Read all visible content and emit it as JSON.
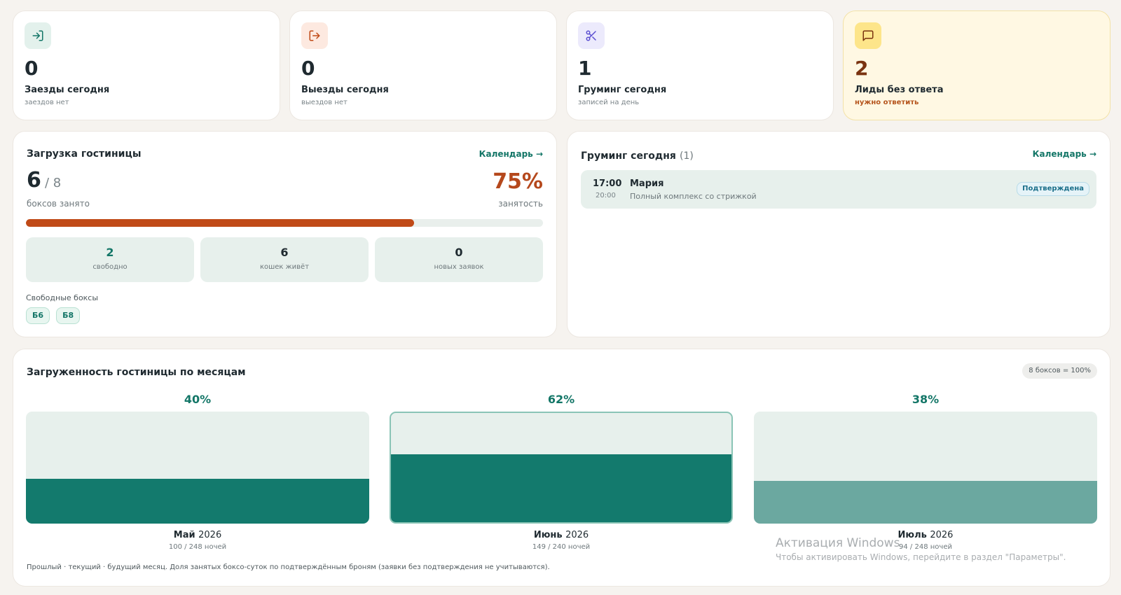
{
  "stats": [
    {
      "value": "0",
      "label": "Заезды сегодня",
      "sub": "заездов нет",
      "icon": "log-in-icon",
      "accent": "#137667",
      "icon_bg": "#e3f1ec"
    },
    {
      "value": "0",
      "label": "Выезды сегодня",
      "sub": "выездов нет",
      "icon": "log-out-icon",
      "accent": "#c04a17",
      "icon_bg": "#fde9e0"
    },
    {
      "value": "1",
      "label": "Груминг сегодня",
      "sub": "записей на день",
      "icon": "scissors-icon",
      "accent": "#5b4fd1",
      "icon_bg": "#eceafc"
    },
    {
      "value": "2",
      "label": "Лиды без ответа",
      "sub": "нужно ответить",
      "icon": "message-icon",
      "accent": "#7a3310",
      "icon_bg": "#fde58a"
    }
  ],
  "hotel": {
    "title": "Загрузка гостиницы",
    "calendar_link": "Календарь →",
    "occupied": "6",
    "total": "/ 8",
    "occupied_label": "боксов занято",
    "percent": "75%",
    "percent_label": "занятость",
    "progress": 0.75,
    "mini": [
      {
        "value": "2",
        "label": "свободно",
        "color": "#137667"
      },
      {
        "value": "6",
        "label": "кошек живёт",
        "color": "#1f2a30"
      },
      {
        "value": "0",
        "label": "новых заявок",
        "color": "#1f2a30"
      }
    ],
    "free_label": "Свободные боксы",
    "free_boxes": [
      "Б6",
      "Б8"
    ]
  },
  "grooming": {
    "title": "Груминг сегодня",
    "count": "(1)",
    "calendar_link": "Календарь →",
    "appointment": {
      "start": "17:00",
      "end": "20:00",
      "name": "Мария",
      "service": "Полный комплекс со стрижкой",
      "status": "Подтверждена"
    }
  },
  "monthly": {
    "title": "Загруженность гостиницы по месяцам",
    "pill": "8 боксов = 100%",
    "months": [
      {
        "percent": "40%",
        "fill": 0.4,
        "month": "Май",
        "year": "2026",
        "nights": "100 / 248 ночей",
        "kind": "past"
      },
      {
        "percent": "62%",
        "fill": 0.62,
        "month": "Июнь",
        "year": "2026",
        "nights": "149 / 240 ночей",
        "kind": "current"
      },
      {
        "percent": "38%",
        "fill": 0.38,
        "month": "Июль",
        "year": "2026",
        "nights": "94 / 248 ночей",
        "kind": "future"
      }
    ],
    "footnote": "Прошлый · текущий · будущий месяц. Доля занятых боксо-суток по подтверждённым броням (заявки без подтверждения не учитываются)."
  },
  "watermark": {
    "line1": "Активация Windows",
    "line2": "Чтобы активировать Windows, перейдите в раздел \"Параметры\"."
  }
}
